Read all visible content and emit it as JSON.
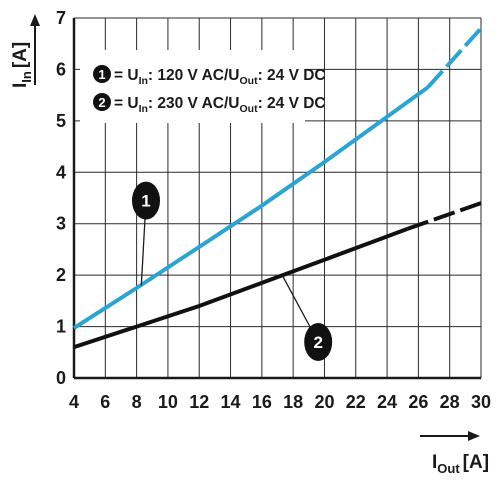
{
  "chart_data": {
    "type": "line",
    "x_axis": {
      "label_main": "I",
      "label_sub": "Out",
      "label_unit": "[A]",
      "range": [
        4,
        30
      ],
      "ticks": [
        4,
        6,
        8,
        10,
        12,
        14,
        16,
        18,
        20,
        22,
        24,
        26,
        28,
        30
      ]
    },
    "y_axis": {
      "label_main": "I",
      "label_sub": "In",
      "label_unit": "[A]",
      "range": [
        0,
        7
      ],
      "ticks": [
        0,
        1,
        2,
        3,
        4,
        5,
        6,
        7
      ]
    },
    "grid": true,
    "legend": {
      "placement": "top-left",
      "entries": [
        {
          "marker": "1",
          "prefix": "= U",
          "sub1": "In",
          "mid": ": 120 V AC/U",
          "sub2": "Out",
          "suffix": ": 24 V DC"
        },
        {
          "marker": "2",
          "prefix": "= U",
          "sub1": "In",
          "mid": ": 230 V AC/U",
          "sub2": "Out",
          "suffix": ": 24 V DC"
        }
      ]
    },
    "series": [
      {
        "marker": "1",
        "color": "#2aa4d5",
        "points": [
          [
            4,
            0.97
          ],
          [
            8,
            1.75
          ],
          [
            12,
            2.55
          ],
          [
            16,
            3.35
          ],
          [
            20,
            4.2
          ],
          [
            26.6,
            5.65
          ],
          [
            30,
            6.8
          ]
        ],
        "dashed_from_x": 26.6,
        "callout_point": [
          8.3,
          1.8
        ],
        "callout_label_at": [
          8.6,
          3.45
        ]
      },
      {
        "marker": "2",
        "color": "#111111",
        "points": [
          [
            4,
            0.6
          ],
          [
            8,
            1.0
          ],
          [
            12,
            1.4
          ],
          [
            16,
            1.85
          ],
          [
            20,
            2.3
          ],
          [
            25.3,
            2.9
          ],
          [
            30,
            3.4
          ]
        ],
        "dashed_from_x": 25.3,
        "callout_point": [
          17.3,
          2.0
        ],
        "callout_label_at": [
          19.6,
          0.7
        ]
      }
    ]
  }
}
